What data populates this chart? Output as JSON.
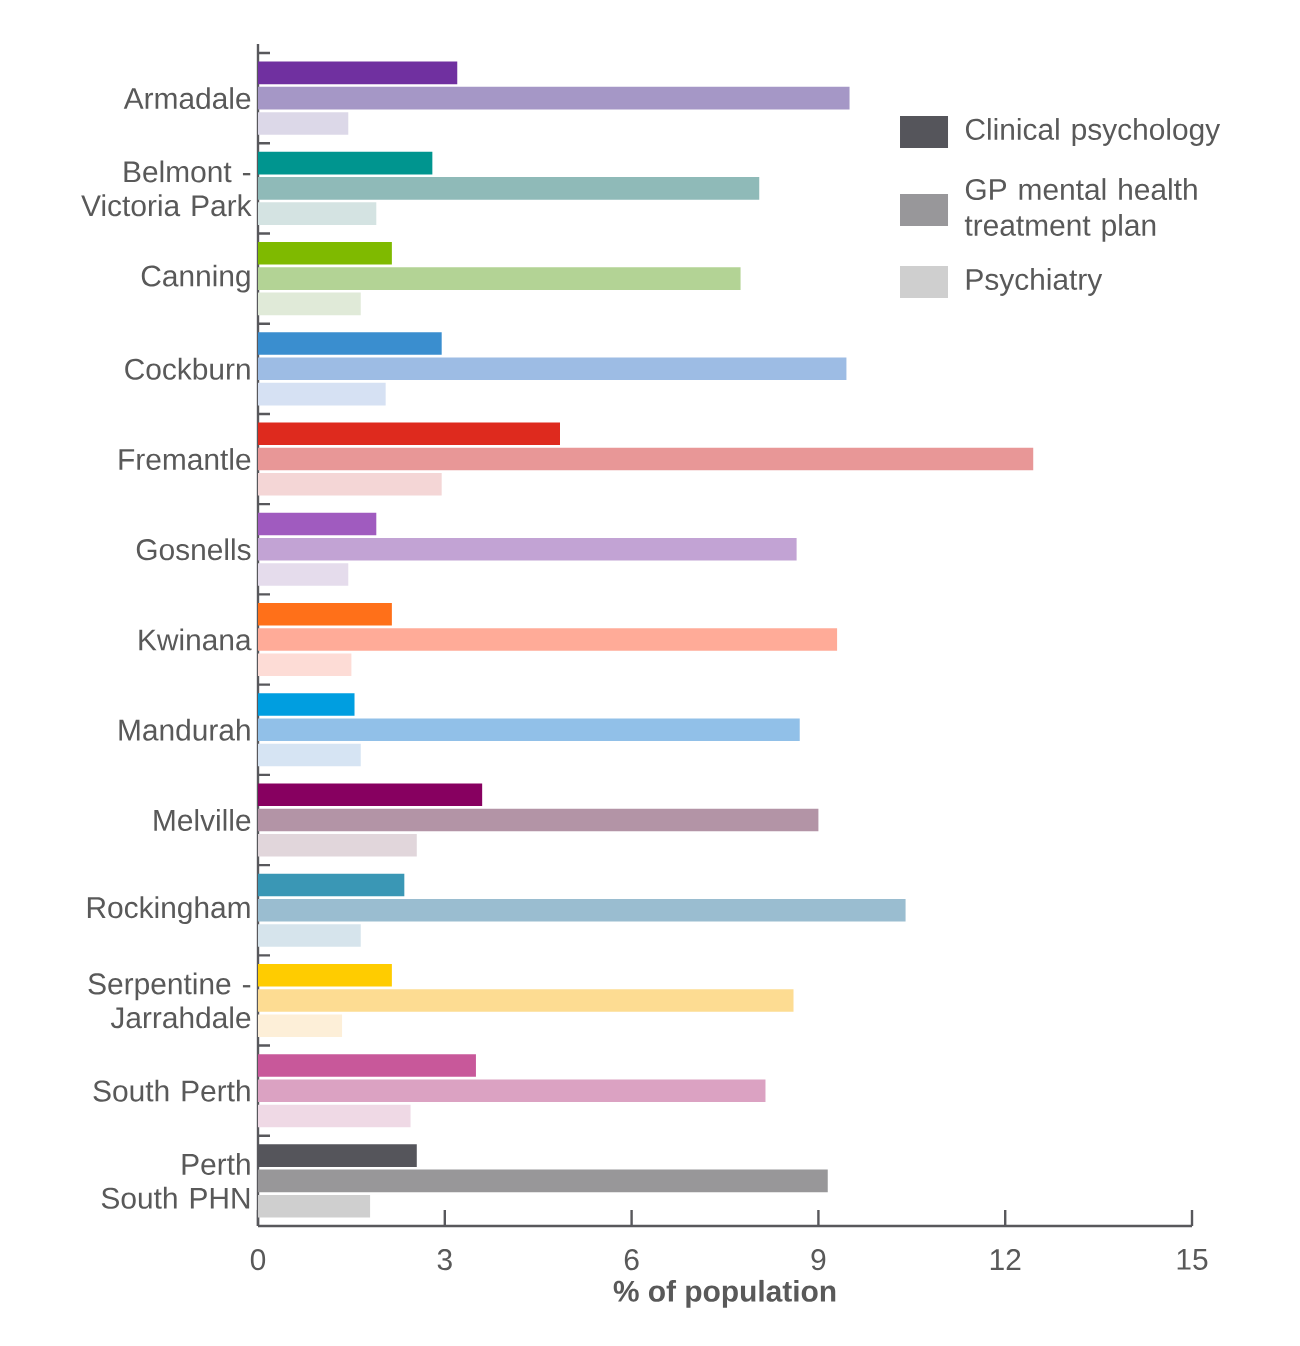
{
  "chart_data": {
    "type": "bar",
    "orientation": "horizontal",
    "xlabel": "% of population",
    "categories": [
      "Armadale",
      "Belmont - Victoria Park",
      "Canning",
      "Cockburn",
      "Fremantle",
      "Gosnells",
      "Kwinana",
      "Mandurah",
      "Melville",
      "Rockingham",
      "Serpentine - Jarrahdale",
      "South Perth",
      "Perth South PHN"
    ],
    "series": [
      {
        "name": "Clinical psychology",
        "color": "#55555b",
        "colors": [
          "#7030a0",
          "#00958f",
          "#7fba00",
          "#3a8ecf",
          "#de2a1e",
          "#a05bbf",
          "#ff7019",
          "#009ee0",
          "#870060",
          "#3a97b5",
          "#ffcc00",
          "#c8589a",
          "#55555b"
        ],
        "values": [
          3.2,
          2.8,
          2.15,
          2.95,
          4.85,
          1.9,
          2.15,
          1.55,
          3.6,
          2.35,
          2.15,
          3.5,
          2.55
        ]
      },
      {
        "name": "GP mental health treatment plan",
        "color": "#98979a",
        "colors": [
          "#a597c6",
          "#8fbab8",
          "#b3d395",
          "#9dbce4",
          "#e89797",
          "#c2a3d4",
          "#ffab98",
          "#91c0e8",
          "#b394a6",
          "#9abdd0",
          "#fddc92",
          "#dba2c2",
          "#989799"
        ],
        "values": [
          9.5,
          8.05,
          7.75,
          9.45,
          12.45,
          8.65,
          9.3,
          8.7,
          9.0,
          10.4,
          8.6,
          8.15,
          9.15
        ]
      },
      {
        "name": "Psychiatry",
        "color": "#cfcfcf",
        "colors": [
          "#dcd8e8",
          "#d4e3e2",
          "#e0ead8",
          "#d6e1f3",
          "#f4d6d6",
          "#e5dcec",
          "#fddcd6",
          "#d6e4f3",
          "#e1d6db",
          "#d6e4ec",
          "#fdefd8",
          "#efd9e5",
          "#cfcfcf"
        ],
        "values": [
          1.45,
          1.9,
          1.65,
          2.05,
          2.95,
          1.45,
          1.5,
          1.65,
          2.55,
          1.65,
          1.35,
          2.45,
          1.8
        ]
      }
    ],
    "xlim": [
      0,
      15
    ],
    "xticks": [
      0,
      3,
      6,
      9,
      12,
      15
    ],
    "legend": "top right"
  }
}
